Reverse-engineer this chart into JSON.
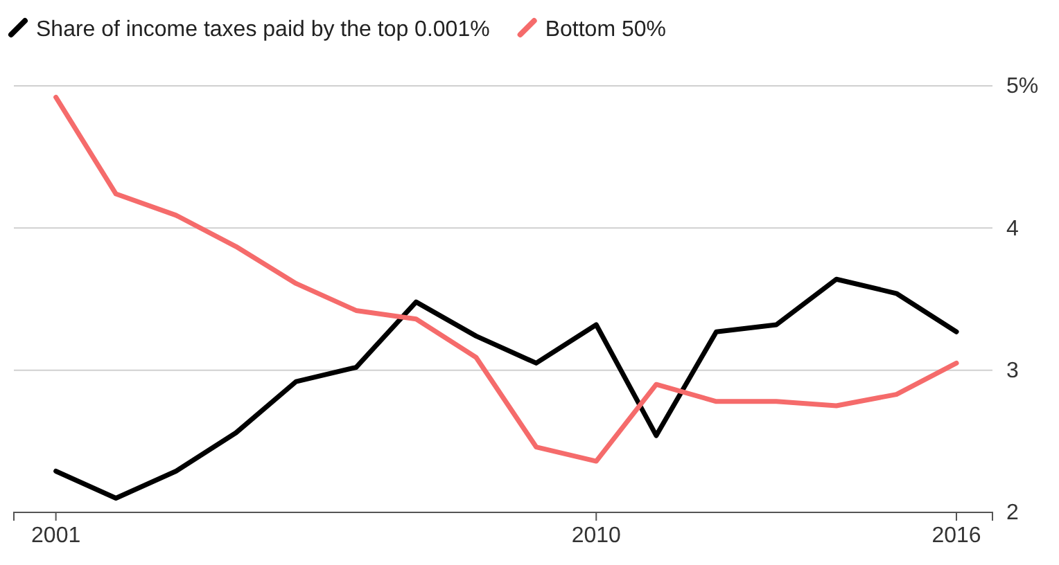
{
  "chart_data": {
    "type": "line",
    "x": [
      2001,
      2002,
      2003,
      2004,
      2005,
      2006,
      2007,
      2008,
      2009,
      2010,
      2011,
      2012,
      2013,
      2014,
      2015,
      2016
    ],
    "series": [
      {
        "name": "Share of income taxes paid by the top 0.001%",
        "color": "#000000",
        "values": [
          2.29,
          2.1,
          2.29,
          2.56,
          2.92,
          3.02,
          3.48,
          3.24,
          3.05,
          3.32,
          2.54,
          3.27,
          3.32,
          3.64,
          3.54,
          3.27
        ]
      },
      {
        "name": "Bottom 50%",
        "color": "#f56b6b",
        "values": [
          4.92,
          4.24,
          4.09,
          3.87,
          3.61,
          3.42,
          3.36,
          3.09,
          2.46,
          2.36,
          2.9,
          2.78,
          2.78,
          2.75,
          2.83,
          3.05
        ]
      }
    ],
    "xlim": [
      2000.3,
      2016.6
    ],
    "xticks": [
      2001,
      2010,
      2016
    ],
    "ylim": [
      2,
      5
    ],
    "yticks": [
      2,
      3,
      4,
      {
        "value": 5,
        "label": "5%"
      }
    ],
    "grid": "y",
    "legend": "top left",
    "marker": "none",
    "line_style": "solid"
  }
}
